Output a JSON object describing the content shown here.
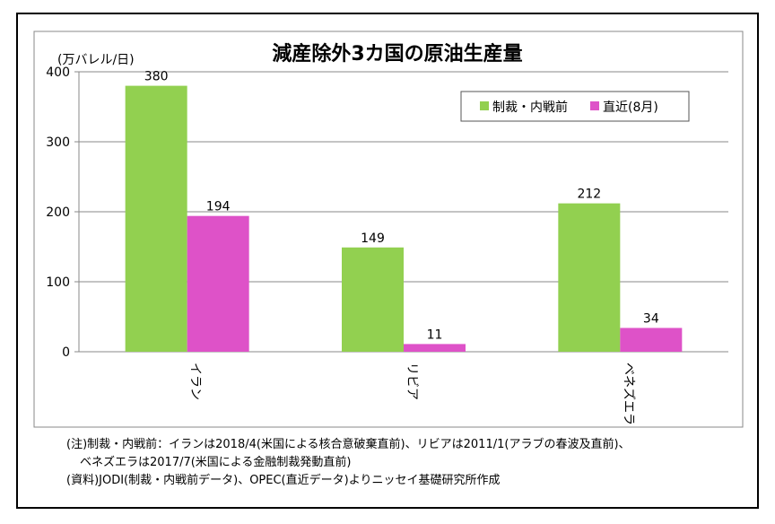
{
  "chart_data": {
    "type": "bar",
    "title": "減産除外3カ国の原油生産量",
    "ylabel": "(万バレル/日)",
    "xlabel": "",
    "categories": [
      "イラン",
      "リビア",
      "ベネズエラ"
    ],
    "series": [
      {
        "name": "制裁・内戦前",
        "values": [
          380,
          149,
          212
        ],
        "color": "#92D050"
      },
      {
        "name": "直近(8月)",
        "values": [
          194,
          11,
          34
        ],
        "color": "#DE52C8"
      }
    ],
    "ylim": [
      0,
      400
    ],
    "yticks": [
      "0",
      "100",
      "200",
      "300",
      "400"
    ],
    "grid": true,
    "legend": "top-right"
  },
  "notes": {
    "line1": "(注)制裁・内戦前：イランは2018/4(米国による核合意破棄直前)、リビアは2011/1(アラブの春波及直前)、",
    "line2": "ベネズエラは2017/7(米国による金融制裁発動直前)",
    "line3": "(資料)JODI(制裁・内戦前データ)、OPEC(直近データ)よりニッセイ基礎研究所作成"
  }
}
